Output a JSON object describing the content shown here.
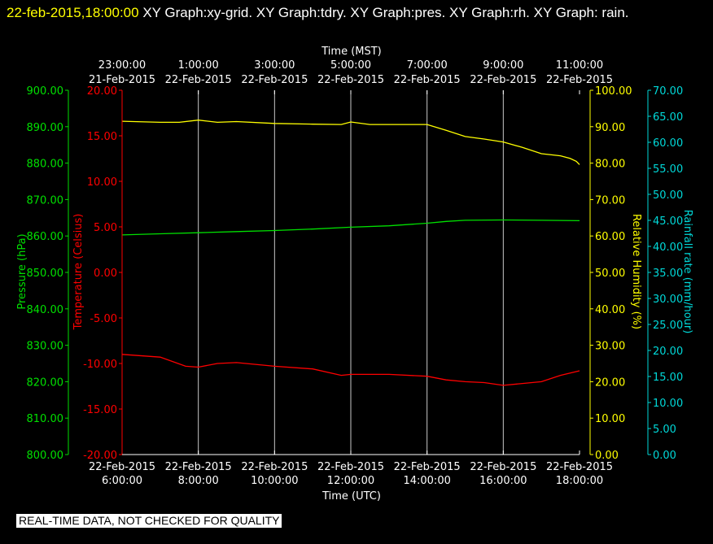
{
  "header": {
    "timestamp": "22-feb-2015,18:00:00",
    "text": " XY Graph:xy-grid.  XY Graph:tdry.  XY Graph:pres.  XY Graph:rh.  XY Graph: rain."
  },
  "footer": {
    "notice": "REAL-TIME DATA, NOT CHECKED FOR QUALITY"
  },
  "colors": {
    "pressure": "#00e000",
    "temperature": "#ff0000",
    "humidity": "#ffff00",
    "rain": "#00d8d8",
    "grid": "#c8c8c8",
    "text": "#ffffff"
  },
  "chart_data": {
    "type": "line",
    "grid": true,
    "x_axis_bottom": {
      "label": "Time (UTC)",
      "range": [
        "2015-02-22 06:00",
        "2015-02-22 18:00"
      ],
      "ticks": [
        {
          "date": "22-Feb-2015",
          "time": "6:00:00"
        },
        {
          "date": "22-Feb-2015",
          "time": "8:00:00"
        },
        {
          "date": "22-Feb-2015",
          "time": "10:00:00"
        },
        {
          "date": "22-Feb-2015",
          "time": "12:00:00"
        },
        {
          "date": "22-Feb-2015",
          "time": "14:00:00"
        },
        {
          "date": "22-Feb-2015",
          "time": "16:00:00"
        },
        {
          "date": "22-Feb-2015",
          "time": "18:00:00"
        }
      ]
    },
    "x_axis_top": {
      "label": "Time (MST)",
      "ticks": [
        {
          "date": "21-Feb-2015",
          "time": "23:00:00"
        },
        {
          "date": "22-Feb-2015",
          "time": "1:00:00"
        },
        {
          "date": "22-Feb-2015",
          "time": "3:00:00"
        },
        {
          "date": "22-Feb-2015",
          "time": "5:00:00"
        },
        {
          "date": "22-Feb-2015",
          "time": "7:00:00"
        },
        {
          "date": "22-Feb-2015",
          "time": "9:00:00"
        },
        {
          "date": "22-Feb-2015",
          "time": "11:00:00"
        }
      ]
    },
    "axes": {
      "pressure": {
        "label": "Pressure (hPa)",
        "range": [
          800,
          900
        ],
        "ticks": [
          "800.00",
          "810.00",
          "820.00",
          "830.00",
          "840.00",
          "850.00",
          "860.00",
          "870.00",
          "880.00",
          "890.00",
          "900.00"
        ]
      },
      "temperature": {
        "label": "Temperature (Celsius)",
        "range": [
          -20,
          20
        ],
        "ticks": [
          "-20.00",
          "-15.00",
          "-10.00",
          "-5.00",
          "0.00",
          "5.00",
          "10.00",
          "15.00",
          "20.00"
        ]
      },
      "humidity": {
        "label": "Relative Humidity (%)",
        "range": [
          0,
          100
        ],
        "ticks": [
          "0.00",
          "10.00",
          "20.00",
          "30.00",
          "40.00",
          "50.00",
          "60.00",
          "70.00",
          "80.00",
          "90.00",
          "100.00"
        ]
      },
      "rain": {
        "label": "Rainfall rate (mm/hour)",
        "range": [
          0,
          70
        ],
        "ticks": [
          "0.00",
          "5.00",
          "10.00",
          "15.00",
          "20.00",
          "25.00",
          "30.00",
          "35.00",
          "40.00",
          "45.00",
          "50.00",
          "55.00",
          "60.00",
          "65.00",
          "70.00"
        ]
      }
    },
    "series": [
      {
        "key": "humidity",
        "x": [
          "06:00",
          "07:00",
          "07:30",
          "08:00",
          "08:30",
          "09:00",
          "10:00",
          "11:00",
          "11:45",
          "12:00",
          "12:30",
          "13:00",
          "14:00",
          "14:30",
          "15:00",
          "15:30",
          "16:00",
          "16:30",
          "17:00",
          "17:30",
          "17:45",
          "17:55",
          "18:00"
        ],
        "y": [
          91.5,
          91.2,
          91.2,
          91.8,
          91.2,
          91.4,
          90.9,
          90.7,
          90.6,
          91.3,
          90.6,
          90.6,
          90.6,
          89.0,
          87.3,
          86.6,
          85.8,
          84.3,
          82.6,
          82.0,
          81.3,
          80.5,
          79.6
        ]
      },
      {
        "key": "pressure",
        "x": [
          "06:00",
          "07:00",
          "08:00",
          "09:00",
          "10:00",
          "11:00",
          "12:00",
          "13:00",
          "14:00",
          "14:30",
          "15:00",
          "16:00",
          "17:00",
          "18:00"
        ],
        "y": [
          860.3,
          860.6,
          860.9,
          861.2,
          861.5,
          861.9,
          862.4,
          862.8,
          863.5,
          864.0,
          864.3,
          864.4,
          864.3,
          864.2
        ]
      },
      {
        "key": "temperature",
        "x": [
          "06:00",
          "07:00",
          "07:40",
          "08:00",
          "08:30",
          "09:00",
          "10:00",
          "11:00",
          "11:45",
          "12:00",
          "13:00",
          "14:00",
          "14:30",
          "15:00",
          "15:30",
          "16:00",
          "16:30",
          "17:00",
          "17:30",
          "18:00"
        ],
        "y": [
          -9.0,
          -9.3,
          -10.3,
          -10.4,
          -10.0,
          -9.9,
          -10.3,
          -10.6,
          -11.3,
          -11.2,
          -11.2,
          -11.4,
          -11.8,
          -12.0,
          -12.1,
          -12.4,
          -12.2,
          -12.0,
          -11.3,
          -10.8
        ]
      }
    ]
  }
}
